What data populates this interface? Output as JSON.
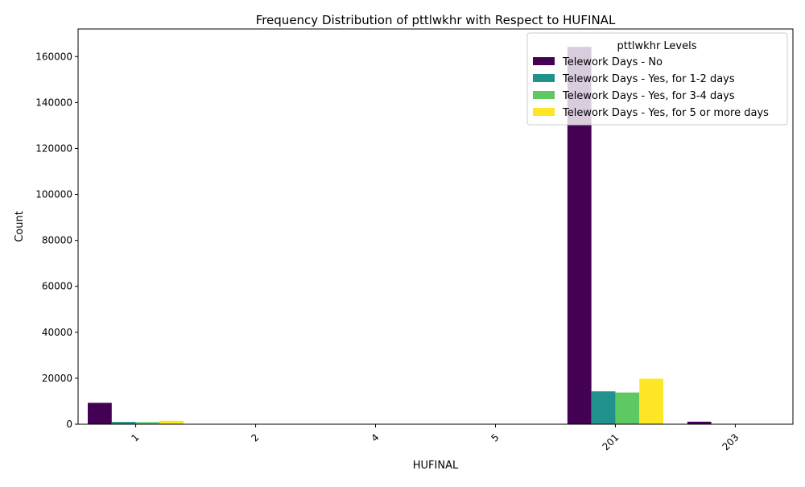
{
  "chart_data": {
    "type": "bar",
    "title": "Frequency Distribution of pttlwkhr with Respect to HUFINAL",
    "xlabel": "HUFINAL",
    "ylabel": "Count",
    "categories": [
      "1",
      "2",
      "4",
      "5",
      "201",
      "203"
    ],
    "ylim": [
      0,
      172000
    ],
    "yticks": [
      0,
      20000,
      40000,
      60000,
      80000,
      100000,
      120000,
      140000,
      160000
    ],
    "grid": false,
    "legend": {
      "title": "pttlwkhr Levels",
      "placement": "top-right"
    },
    "series": [
      {
        "name": "Telework Days - No",
        "color": "#440154",
        "values": [
          9300,
          0,
          0,
          0,
          164200,
          1100
        ]
      },
      {
        "name": "Telework Days - Yes, for 1-2 days",
        "color": "#21918c",
        "values": [
          1000,
          0,
          0,
          0,
          14300,
          0
        ]
      },
      {
        "name": "Telework Days - Yes, for 3-4 days",
        "color": "#5ec962",
        "values": [
          900,
          0,
          0,
          0,
          13800,
          0
        ]
      },
      {
        "name": "Telework Days - Yes, for 5 or more days",
        "color": "#fde725",
        "values": [
          1500,
          0,
          0,
          0,
          19800,
          0
        ]
      }
    ]
  }
}
